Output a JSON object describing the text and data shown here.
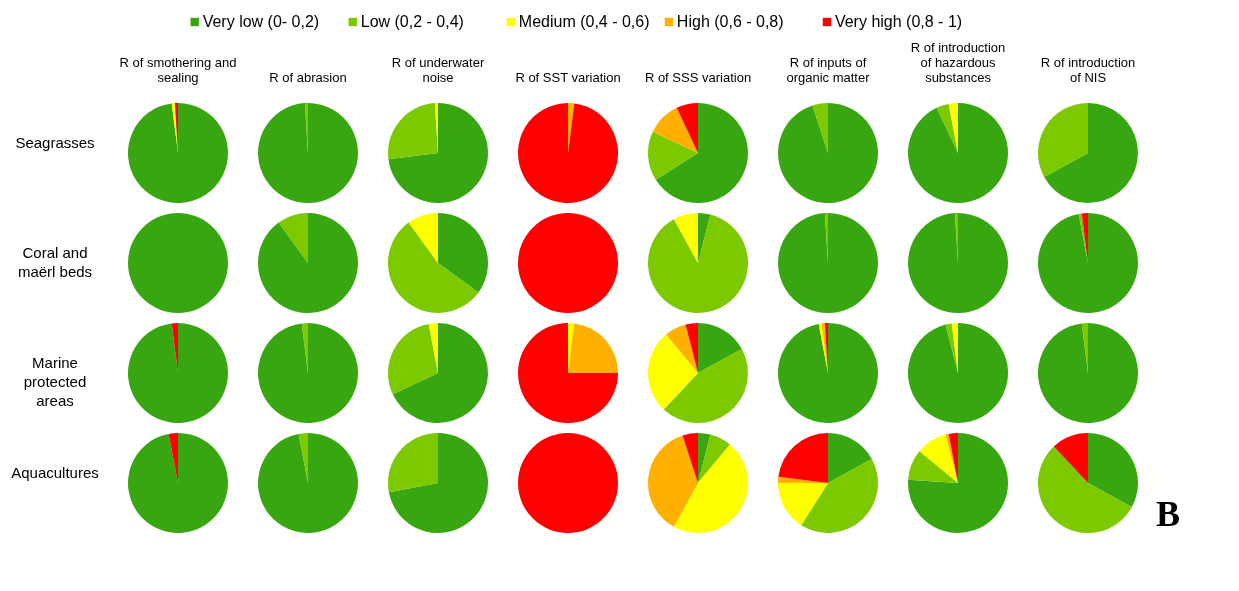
{
  "chart_data": [
    {
      "type": "pie",
      "title": "R of smothering and sealing",
      "ylabel": "Seagrasses",
      "legend": "top",
      "categories": [
        "Very low (0- 0,2)",
        "Low (0,2 - 0,4)",
        "Medium (0,4 - 0,6)",
        "High (0,6 - 0,8)",
        "Very high (0,8 - 1)"
      ],
      "values": [
        98,
        0,
        1,
        0,
        1
      ],
      "colors": [
        "#38a611",
        "#7dc900",
        "#ffff00",
        "#ffb000",
        "#ff0000"
      ]
    },
    {
      "type": "pie",
      "title": "R of abrasion",
      "categories": [
        null,
        null,
        null,
        null,
        null
      ],
      "values": [
        99,
        1,
        0,
        0,
        0
      ],
      "colors": [
        "#38a611",
        "#7dc900",
        "#ffff00",
        "#ffb000",
        "#ff0000"
      ]
    },
    {
      "type": "pie",
      "title": "R of underwater noise",
      "categories": [
        null,
        null,
        null,
        null,
        null
      ],
      "values": [
        73,
        26,
        1,
        0,
        0
      ],
      "colors": [
        "#38a611",
        "#7dc900",
        "#ffff00",
        "#ffb000",
        "#ff0000"
      ]
    },
    {
      "type": "pie",
      "title": "R of SST variation",
      "categories": [
        null,
        null,
        null,
        null,
        null
      ],
      "values": [
        0,
        0,
        0,
        2,
        98
      ],
      "colors": [
        "#38a611",
        "#7dc900",
        "#ffff00",
        "#ffb000",
        "#ff0000"
      ]
    },
    {
      "type": "pie",
      "title": "R of SSS variation",
      "categories": [
        null,
        null,
        null,
        null,
        null
      ],
      "values": [
        66,
        16,
        0,
        11,
        7
      ],
      "colors": [
        "#38a611",
        "#7dc900",
        "#ffff00",
        "#ffb000",
        "#ff0000"
      ]
    },
    {
      "type": "pie",
      "title": "R of inputs of organic matter",
      "categories": [
        null,
        null,
        null,
        null,
        null
      ],
      "values": [
        95,
        5,
        0,
        0,
        0
      ],
      "colors": [
        "#38a611",
        "#7dc900",
        "#ffff00",
        "#ffb000",
        "#ff0000"
      ]
    },
    {
      "type": "pie",
      "title": "R of introduction of hazardous substances",
      "categories": [
        null,
        null,
        null,
        null,
        null
      ],
      "values": [
        93,
        4,
        3,
        0,
        0
      ],
      "colors": [
        "#38a611",
        "#7dc900",
        "#ffff00",
        "#ffb000",
        "#ff0000"
      ]
    },
    {
      "type": "pie",
      "title": "R of introduction of NIS",
      "categories": [
        null,
        null,
        null,
        null,
        null
      ],
      "values": [
        67,
        33,
        0,
        0,
        0
      ],
      "colors": [
        "#38a611",
        "#7dc900",
        "#ffff00",
        "#ffb000",
        "#ff0000"
      ]
    },
    {
      "type": "pie",
      "ylabel": "Coral and maërl beds",
      "categories": [
        null,
        null,
        null,
        null,
        null
      ],
      "values": [
        100,
        0,
        0,
        0,
        0
      ],
      "colors": [
        "#38a611",
        "#7dc900",
        "#ffff00",
        "#ffb000",
        "#ff0000"
      ]
    },
    {
      "type": "pie",
      "categories": [
        null,
        null,
        null,
        null,
        null
      ],
      "values": [
        90,
        10,
        0,
        0,
        0
      ],
      "colors": [
        "#38a611",
        "#7dc900",
        "#ffff00",
        "#ffb000",
        "#ff0000"
      ]
    },
    {
      "type": "pie",
      "categories": [
        null,
        null,
        null,
        null,
        null
      ],
      "values": [
        35,
        55,
        10,
        0,
        0
      ],
      "colors": [
        "#38a611",
        "#7dc900",
        "#ffff00",
        "#ffb000",
        "#ff0000"
      ]
    },
    {
      "type": "pie",
      "categories": [
        null,
        null,
        null,
        null,
        null
      ],
      "values": [
        0,
        0,
        0,
        0,
        100
      ],
      "colors": [
        "#38a611",
        "#7dc900",
        "#ffff00",
        "#ffb000",
        "#ff0000"
      ]
    },
    {
      "type": "pie",
      "categories": [
        null,
        null,
        null,
        null,
        null
      ],
      "values": [
        4,
        88,
        8,
        0,
        0
      ],
      "colors": [
        "#38a611",
        "#7dc900",
        "#ffff00",
        "#ffb000",
        "#ff0000"
      ]
    },
    {
      "type": "pie",
      "categories": [
        null,
        null,
        null,
        null,
        null
      ],
      "values": [
        99,
        1,
        0,
        0,
        0
      ],
      "colors": [
        "#38a611",
        "#7dc900",
        "#ffff00",
        "#ffb000",
        "#ff0000"
      ]
    },
    {
      "type": "pie",
      "categories": [
        null,
        null,
        null,
        null,
        null
      ],
      "values": [
        99,
        1,
        0,
        0,
        0
      ],
      "colors": [
        "#38a611",
        "#7dc900",
        "#ffff00",
        "#ffb000",
        "#ff0000"
      ]
    },
    {
      "type": "pie",
      "categories": [
        null,
        null,
        null,
        null,
        null
      ],
      "values": [
        97,
        1,
        0,
        0,
        2
      ],
      "colors": [
        "#38a611",
        "#7dc900",
        "#ffff00",
        "#ffb000",
        "#ff0000"
      ]
    },
    {
      "type": "pie",
      "ylabel": "Marine protected areas",
      "categories": [
        null,
        null,
        null,
        null,
        null
      ],
      "values": [
        98,
        0,
        0,
        0,
        2
      ],
      "colors": [
        "#38a611",
        "#7dc900",
        "#ffff00",
        "#ffb000",
        "#ff0000"
      ]
    },
    {
      "type": "pie",
      "categories": [
        null,
        null,
        null,
        null,
        null
      ],
      "values": [
        98,
        2,
        0,
        0,
        0
      ],
      "colors": [
        "#38a611",
        "#7dc900",
        "#ffff00",
        "#ffb000",
        "#ff0000"
      ]
    },
    {
      "type": "pie",
      "categories": [
        null,
        null,
        null,
        null,
        null
      ],
      "values": [
        68,
        29,
        3,
        0,
        0
      ],
      "colors": [
        "#38a611",
        "#7dc900",
        "#ffff00",
        "#ffb000",
        "#ff0000"
      ]
    },
    {
      "type": "pie",
      "categories": [
        null,
        null,
        null,
        null,
        null
      ],
      "values": [
        0,
        0,
        2,
        23,
        75
      ],
      "colors": [
        "#38a611",
        "#7dc900",
        "#ffff00",
        "#ffb000",
        "#ff0000"
      ]
    },
    {
      "type": "pie",
      "categories": [
        null,
        null,
        null,
        null,
        null
      ],
      "values": [
        17,
        45,
        27,
        7,
        4
      ],
      "colors": [
        "#38a611",
        "#7dc900",
        "#ffff00",
        "#ffb000",
        "#ff0000"
      ]
    },
    {
      "type": "pie",
      "categories": [
        null,
        null,
        null,
        null,
        null
      ],
      "values": [
        97,
        0,
        1,
        1,
        1
      ],
      "colors": [
        "#38a611",
        "#7dc900",
        "#ffff00",
        "#ffb000",
        "#ff0000"
      ]
    },
    {
      "type": "pie",
      "categories": [
        null,
        null,
        null,
        null,
        null
      ],
      "values": [
        96,
        2,
        2,
        0,
        0
      ],
      "colors": [
        "#38a611",
        "#7dc900",
        "#ffff00",
        "#ffb000",
        "#ff0000"
      ]
    },
    {
      "type": "pie",
      "categories": [
        null,
        null,
        null,
        null,
        null
      ],
      "values": [
        98,
        2,
        0,
        0,
        0
      ],
      "colors": [
        "#38a611",
        "#7dc900",
        "#ffff00",
        "#ffb000",
        "#ff0000"
      ]
    },
    {
      "type": "pie",
      "ylabel": "Aquacultures",
      "categories": [
        null,
        null,
        null,
        null,
        null
      ],
      "values": [
        97,
        0,
        0,
        0,
        3
      ],
      "colors": [
        "#38a611",
        "#7dc900",
        "#ffff00",
        "#ffb000",
        "#ff0000"
      ]
    },
    {
      "type": "pie",
      "categories": [
        null,
        null,
        null,
        null,
        null
      ],
      "values": [
        97,
        3,
        0,
        0,
        0
      ],
      "colors": [
        "#38a611",
        "#7dc900",
        "#ffff00",
        "#ffb000",
        "#ff0000"
      ]
    },
    {
      "type": "pie",
      "categories": [
        null,
        null,
        null,
        null,
        null
      ],
      "values": [
        72,
        28,
        0,
        0,
        0
      ],
      "colors": [
        "#38a611",
        "#7dc900",
        "#ffff00",
        "#ffb000",
        "#ff0000"
      ]
    },
    {
      "type": "pie",
      "categories": [
        null,
        null,
        null,
        null,
        null
      ],
      "values": [
        0,
        0,
        0,
        0,
        100
      ],
      "colors": [
        "#38a611",
        "#7dc900",
        "#ffff00",
        "#ffb000",
        "#ff0000"
      ]
    },
    {
      "type": "pie",
      "categories": [
        null,
        null,
        null,
        null,
        null
      ],
      "values": [
        4,
        7,
        47,
        37,
        5
      ],
      "colors": [
        "#38a611",
        "#7dc900",
        "#ffff00",
        "#ffb000",
        "#ff0000"
      ]
    },
    {
      "type": "pie",
      "categories": [
        null,
        null,
        null,
        null,
        null
      ],
      "values": [
        17,
        42,
        16,
        2,
        23
      ],
      "colors": [
        "#38a611",
        "#7dc900",
        "#ffff00",
        "#ffb000",
        "#ff0000"
      ]
    },
    {
      "type": "pie",
      "categories": [
        null,
        null,
        null,
        null,
        null
      ],
      "values": [
        76,
        10,
        10,
        1,
        3
      ],
      "colors": [
        "#38a611",
        "#7dc900",
        "#ffff00",
        "#ffb000",
        "#ff0000"
      ]
    },
    {
      "type": "pie",
      "annotations": [
        "B"
      ],
      "categories": [
        null,
        null,
        null,
        null,
        null
      ],
      "values": [
        33,
        55,
        0,
        0,
        12
      ],
      "colors": [
        "#38a611",
        "#7dc900",
        "#ffff00",
        "#ffb000",
        "#ff0000"
      ]
    }
  ]
}
